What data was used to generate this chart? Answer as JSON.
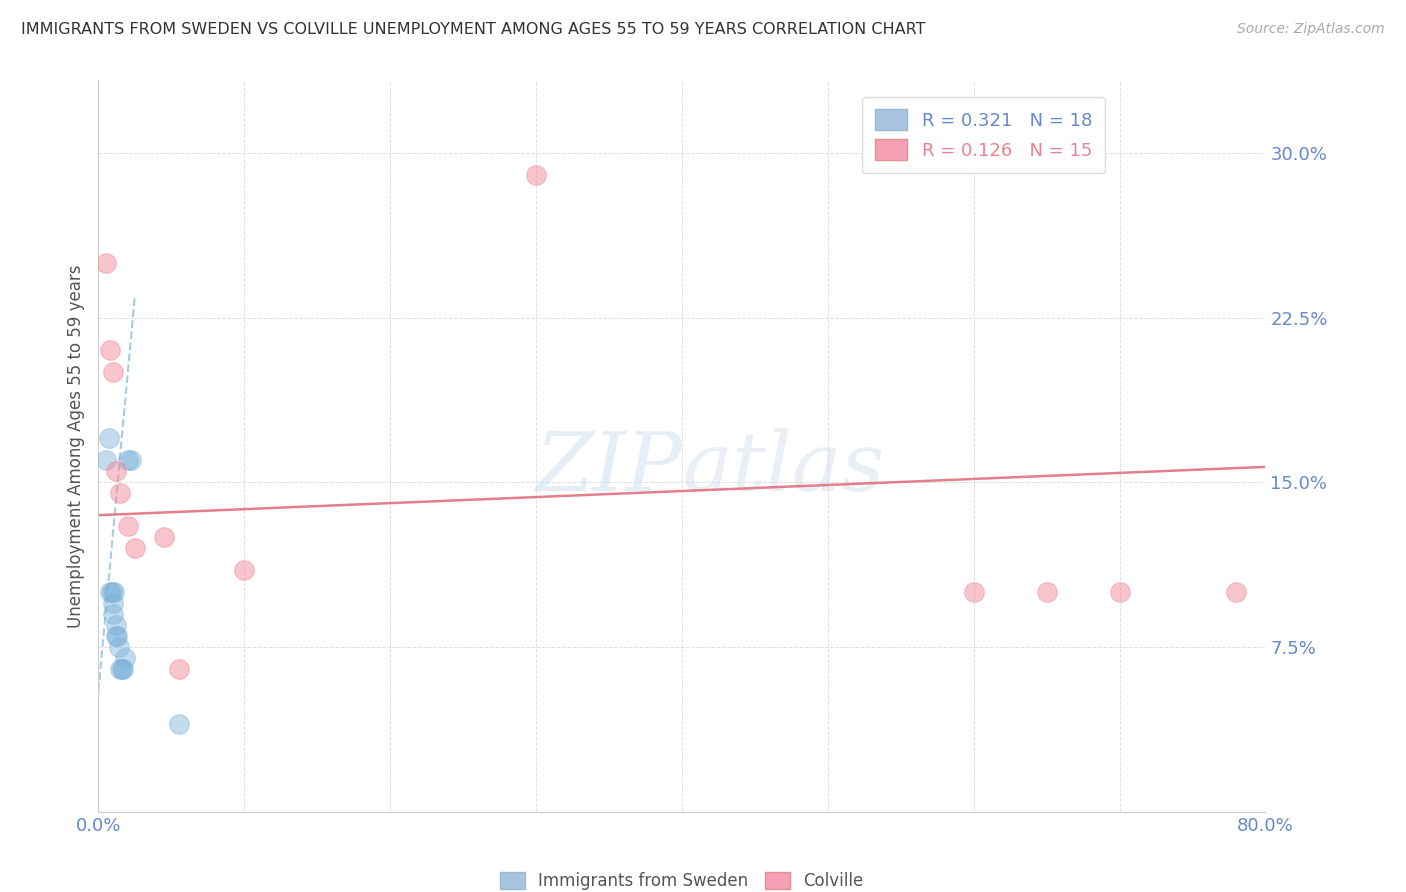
{
  "title": "IMMIGRANTS FROM SWEDEN VS COLVILLE UNEMPLOYMENT AMONG AGES 55 TO 59 YEARS CORRELATION CHART",
  "source": "Source: ZipAtlas.com",
  "ylabel": "Unemployment Among Ages 55 to 59 years",
  "xlim": [
    0.0,
    0.8
  ],
  "ylim": [
    0.0,
    0.333
  ],
  "yticks": [
    0.075,
    0.15,
    0.225,
    0.3
  ],
  "ytick_labels": [
    "7.5%",
    "15.0%",
    "22.5%",
    "30.0%"
  ],
  "xticks": [
    0.0,
    0.1,
    0.2,
    0.3,
    0.4,
    0.5,
    0.6,
    0.7,
    0.8
  ],
  "blue_scatter_x": [
    0.005,
    0.007,
    0.008,
    0.009,
    0.01,
    0.01,
    0.011,
    0.012,
    0.012,
    0.013,
    0.014,
    0.015,
    0.016,
    0.017,
    0.018,
    0.02,
    0.022,
    0.055
  ],
  "blue_scatter_y": [
    0.16,
    0.17,
    0.1,
    0.1,
    0.09,
    0.095,
    0.1,
    0.08,
    0.085,
    0.08,
    0.075,
    0.065,
    0.065,
    0.065,
    0.07,
    0.16,
    0.16,
    0.04
  ],
  "pink_scatter_x": [
    0.005,
    0.008,
    0.01,
    0.012,
    0.015,
    0.02,
    0.025,
    0.045,
    0.055,
    0.1,
    0.3,
    0.6,
    0.65,
    0.7,
    0.78
  ],
  "pink_scatter_y": [
    0.25,
    0.21,
    0.2,
    0.155,
    0.145,
    0.13,
    0.12,
    0.125,
    0.065,
    0.11,
    0.29,
    0.1,
    0.1,
    0.1,
    0.1
  ],
  "blue_line_x": [
    0.0,
    0.025
  ],
  "blue_line_y": [
    0.055,
    0.235
  ],
  "pink_line_x": [
    0.0,
    0.8
  ],
  "pink_line_y": [
    0.135,
    0.157
  ],
  "blue_color": "#7ab0d8",
  "pink_color": "#f08090",
  "blue_line_color": "#7ab0d8",
  "pink_line_color": "#e06878",
  "watermark_zip": "ZIP",
  "watermark_atlas": "atlas",
  "background_color": "#ffffff",
  "grid_color": "#e0e0e0",
  "tick_label_color": "#6688cc",
  "title_color": "#333333",
  "legend1_label_r": "R = 0.321",
  "legend1_label_n": "N = 18",
  "legend2_label_r": "R = 0.126",
  "legend2_label_n": "N = 15",
  "bottom_legend1": "Immigrants from Sweden",
  "bottom_legend2": "Colville"
}
